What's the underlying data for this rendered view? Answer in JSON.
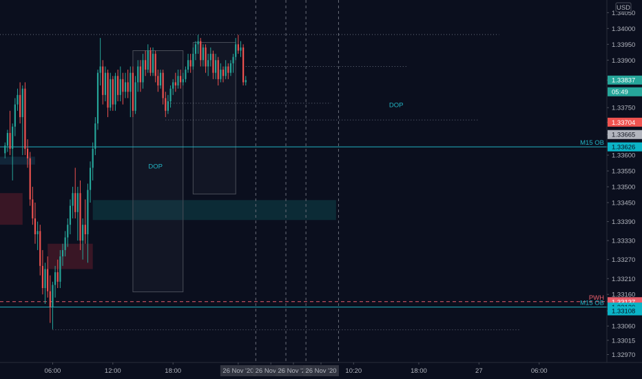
{
  "chart_data": {
    "type": "candlestick",
    "currency": "USD",
    "ylim": [
      1.32945,
      1.3409
    ],
    "xlim": [
      -2,
      240
    ],
    "y_ticks": [
      1.3405,
      1.34,
      1.3395,
      1.339,
      1.33837,
      1.3375,
      1.33704,
      1.33665,
      1.33626,
      1.336,
      1.3355,
      1.335,
      1.3345,
      1.3339,
      1.3333,
      1.3327,
      1.3321,
      1.3316,
      1.33137,
      1.3312,
      1.33108,
      1.3306,
      1.33015,
      1.3297
    ],
    "y_tick_labels": [
      "1.34050",
      "1.34000",
      "1.33950",
      "1.33900",
      "1.33837",
      "1.33750",
      "1.33704",
      "1.33665",
      "1.33626",
      "1.33600",
      "1.33550",
      "1.33500",
      "1.33450",
      "1.33390",
      "1.33330",
      "1.33270",
      "1.33210",
      "1.33160",
      "1.33137",
      "1.33120",
      "1.33108",
      "1.33060",
      "1.33015",
      "1.32970"
    ],
    "x_ticks": [
      {
        "x": 19,
        "label": "06:00"
      },
      {
        "x": 43,
        "label": "12:00"
      },
      {
        "x": 67,
        "label": "18:00"
      },
      {
        "x": 93,
        "label": "26 Nov '20"
      },
      {
        "x": 106,
        "label": "26 Nov '20"
      },
      {
        "x": 115,
        "label": "26 Nov '20"
      },
      {
        "x": 126,
        "label": "26 Nov '20"
      },
      {
        "x": 139,
        "label": "10:20"
      },
      {
        "x": 165,
        "label": "18:00"
      },
      {
        "x": 189,
        "label": "27"
      },
      {
        "x": 213,
        "label": "06:00"
      }
    ],
    "price_badges": [
      {
        "label": "1.33837",
        "value": 1.33837,
        "bg": "#26a69a",
        "fg": "#ffffff"
      },
      {
        "label": "05:49",
        "value": 1.338,
        "bg": "#26a69a",
        "fg": "#ffffff"
      },
      {
        "label": "1.33704",
        "value": 1.33704,
        "bg": "#f05350",
        "fg": "#ffffff"
      },
      {
        "label": "1.33665",
        "value": 1.33665,
        "bg": "#b2b5be",
        "fg": "#131722"
      },
      {
        "label": "1.33626",
        "value": 1.33626,
        "bg": "#0bb4c7",
        "fg": "#0b0f1e"
      },
      {
        "label": "1.33137",
        "value": 1.33137,
        "bg": "#eb5e6b",
        "fg": "#ffffff"
      },
      {
        "label": "1.33120",
        "value": 1.3312,
        "bg": "#0bb4c7",
        "fg": "#0b0f1e"
      },
      {
        "label": "1.33108",
        "value": 1.33108,
        "bg": "#0bb4c7",
        "fg": "#0b0f1e"
      }
    ],
    "levels": [
      {
        "name": "M15 OB",
        "value": 1.33626,
        "style": "solid",
        "color": "#22b3c3"
      },
      {
        "name": "PWH",
        "value": 1.33137,
        "style": "dashed",
        "color": "#eb5e6b"
      },
      {
        "name": "M15 OB",
        "value": 1.3312,
        "style": "solid",
        "color": "#22b3c3"
      }
    ],
    "annotations": [
      {
        "text": "DOP",
        "x": 156,
        "y": 1.33752
      },
      {
        "text": "DOP",
        "x": 60,
        "y": 1.33558
      }
    ],
    "dotted_lines": [
      {
        "y": 1.33981,
        "x0": -2,
        "x1": 197
      },
      {
        "y": 1.3388,
        "x0": 96,
        "x1": 160
      },
      {
        "y": 1.33764,
        "x0": 64,
        "x1": 130
      },
      {
        "y": 1.33711,
        "x0": 64,
        "x1": 189
      },
      {
        "y": 1.33048,
        "x0": 19,
        "x1": 205
      }
    ],
    "vertical_dashed_x": [
      100,
      112,
      120,
      133
    ],
    "zones": [
      {
        "x0": -2,
        "x1": 7,
        "y0": 1.3338,
        "y1": 1.3348,
        "fill": "#4a1a28",
        "opacity": 0.75
      },
      {
        "x0": 17,
        "x1": 35,
        "y0": 1.3324,
        "y1": 1.3332,
        "fill": "#4a1a28",
        "opacity": 0.75
      },
      {
        "x0": 35,
        "x1": 132,
        "y0": 1.33395,
        "y1": 1.33458,
        "fill": "#0e3a44",
        "opacity": 0.65
      },
      {
        "x0": -2,
        "x1": 12,
        "y0": 1.3357,
        "y1": 1.33595,
        "fill": "#183c52",
        "opacity": 0.5
      }
    ],
    "gray_boxes": [
      {
        "x0": 51,
        "x1": 71,
        "y0": 1.33168,
        "y1": 1.3393
      },
      {
        "x0": 75,
        "x1": 92,
        "y0": 1.33477,
        "y1": 1.33956
      }
    ],
    "candles": [
      {
        "x": 0,
        "o": 1.33606,
        "h": 1.3364,
        "l": 1.3359,
        "c": 1.3363
      },
      {
        "x": 1,
        "o": 1.3363,
        "h": 1.3368,
        "l": 1.3361,
        "c": 1.3367
      },
      {
        "x": 2,
        "o": 1.3367,
        "h": 1.3374,
        "l": 1.336,
        "c": 1.3362
      },
      {
        "x": 3,
        "o": 1.3362,
        "h": 1.337,
        "l": 1.3352,
        "c": 1.3369
      },
      {
        "x": 4,
        "o": 1.3369,
        "h": 1.3378,
        "l": 1.3366,
        "c": 1.3376
      },
      {
        "x": 5,
        "o": 1.3376,
        "h": 1.3381,
        "l": 1.3374,
        "c": 1.3379
      },
      {
        "x": 6,
        "o": 1.3379,
        "h": 1.3383,
        "l": 1.337,
        "c": 1.3372
      },
      {
        "x": 7,
        "o": 1.3372,
        "h": 1.3382,
        "l": 1.336,
        "c": 1.3381
      },
      {
        "x": 8,
        "o": 1.3381,
        "h": 1.3383,
        "l": 1.336,
        "c": 1.3362
      },
      {
        "x": 9,
        "o": 1.3362,
        "h": 1.3365,
        "l": 1.3356,
        "c": 1.3359
      },
      {
        "x": 10,
        "o": 1.3359,
        "h": 1.3361,
        "l": 1.3344,
        "c": 1.3346
      },
      {
        "x": 11,
        "o": 1.3346,
        "h": 1.335,
        "l": 1.3338,
        "c": 1.334
      },
      {
        "x": 12,
        "o": 1.334,
        "h": 1.3345,
        "l": 1.3332,
        "c": 1.3335
      },
      {
        "x": 13,
        "o": 1.3335,
        "h": 1.3339,
        "l": 1.333,
        "c": 1.3336
      },
      {
        "x": 14,
        "o": 1.3336,
        "h": 1.3338,
        "l": 1.3322,
        "c": 1.3325
      },
      {
        "x": 15,
        "o": 1.3325,
        "h": 1.333,
        "l": 1.3316,
        "c": 1.3318
      },
      {
        "x": 16,
        "o": 1.3318,
        "h": 1.3326,
        "l": 1.3313,
        "c": 1.3324
      },
      {
        "x": 17,
        "o": 1.3324,
        "h": 1.3328,
        "l": 1.3315,
        "c": 1.3317
      },
      {
        "x": 18,
        "o": 1.3317,
        "h": 1.3322,
        "l": 1.3307,
        "c": 1.3312
      },
      {
        "x": 19,
        "o": 1.3312,
        "h": 1.332,
        "l": 1.3305,
        "c": 1.3319
      },
      {
        "x": 20,
        "o": 1.3319,
        "h": 1.3325,
        "l": 1.3315,
        "c": 1.3323
      },
      {
        "x": 21,
        "o": 1.3323,
        "h": 1.3327,
        "l": 1.3318,
        "c": 1.332
      },
      {
        "x": 22,
        "o": 1.332,
        "h": 1.333,
        "l": 1.3318,
        "c": 1.3328
      },
      {
        "x": 23,
        "o": 1.3328,
        "h": 1.3332,
        "l": 1.3325,
        "c": 1.333
      },
      {
        "x": 24,
        "o": 1.333,
        "h": 1.3336,
        "l": 1.3328,
        "c": 1.3334
      },
      {
        "x": 25,
        "o": 1.3334,
        "h": 1.334,
        "l": 1.3331,
        "c": 1.3338
      },
      {
        "x": 26,
        "o": 1.3338,
        "h": 1.3346,
        "l": 1.3335,
        "c": 1.3344
      },
      {
        "x": 27,
        "o": 1.3344,
        "h": 1.335,
        "l": 1.334,
        "c": 1.3348
      },
      {
        "x": 28,
        "o": 1.3348,
        "h": 1.3356,
        "l": 1.334,
        "c": 1.3342
      },
      {
        "x": 29,
        "o": 1.3342,
        "h": 1.335,
        "l": 1.3333,
        "c": 1.3348
      },
      {
        "x": 30,
        "o": 1.3348,
        "h": 1.3352,
        "l": 1.333,
        "c": 1.3333
      },
      {
        "x": 31,
        "o": 1.3333,
        "h": 1.334,
        "l": 1.3327,
        "c": 1.3338
      },
      {
        "x": 32,
        "o": 1.3338,
        "h": 1.3346,
        "l": 1.3332,
        "c": 1.3335
      },
      {
        "x": 33,
        "o": 1.3335,
        "h": 1.3351,
        "l": 1.3326,
        "c": 1.3349
      },
      {
        "x": 34,
        "o": 1.3349,
        "h": 1.3358,
        "l": 1.3345,
        "c": 1.3356
      },
      {
        "x": 35,
        "o": 1.3356,
        "h": 1.3364,
        "l": 1.3352,
        "c": 1.3362
      },
      {
        "x": 36,
        "o": 1.3362,
        "h": 1.3372,
        "l": 1.336,
        "c": 1.337
      },
      {
        "x": 37,
        "o": 1.337,
        "h": 1.3387,
        "l": 1.3368,
        "c": 1.3386
      },
      {
        "x": 38,
        "o": 1.3386,
        "h": 1.3397,
        "l": 1.3382,
        "c": 1.3388
      },
      {
        "x": 39,
        "o": 1.3388,
        "h": 1.339,
        "l": 1.3376,
        "c": 1.3379
      },
      {
        "x": 40,
        "o": 1.3379,
        "h": 1.3388,
        "l": 1.3377,
        "c": 1.3386
      },
      {
        "x": 41,
        "o": 1.3386,
        "h": 1.3387,
        "l": 1.3372,
        "c": 1.3375
      },
      {
        "x": 42,
        "o": 1.3375,
        "h": 1.3386,
        "l": 1.3374,
        "c": 1.3384
      },
      {
        "x": 43,
        "o": 1.3384,
        "h": 1.3385,
        "l": 1.3374,
        "c": 1.3376
      },
      {
        "x": 44,
        "o": 1.3376,
        "h": 1.3386,
        "l": 1.3374,
        "c": 1.3385
      },
      {
        "x": 45,
        "o": 1.3385,
        "h": 1.3387,
        "l": 1.3377,
        "c": 1.3379
      },
      {
        "x": 46,
        "o": 1.3379,
        "h": 1.3388,
        "l": 1.3377,
        "c": 1.3384
      },
      {
        "x": 47,
        "o": 1.3384,
        "h": 1.3386,
        "l": 1.3376,
        "c": 1.338
      },
      {
        "x": 48,
        "o": 1.338,
        "h": 1.3386,
        "l": 1.3378,
        "c": 1.3383
      },
      {
        "x": 49,
        "o": 1.3383,
        "h": 1.3387,
        "l": 1.3378,
        "c": 1.338
      },
      {
        "x": 50,
        "o": 1.338,
        "h": 1.3388,
        "l": 1.3372,
        "c": 1.3386
      },
      {
        "x": 51,
        "o": 1.3386,
        "h": 1.3388,
        "l": 1.3372,
        "c": 1.3374
      },
      {
        "x": 52,
        "o": 1.3374,
        "h": 1.3385,
        "l": 1.3373,
        "c": 1.3383
      },
      {
        "x": 53,
        "o": 1.3383,
        "h": 1.339,
        "l": 1.338,
        "c": 1.3388
      },
      {
        "x": 54,
        "o": 1.3388,
        "h": 1.339,
        "l": 1.338,
        "c": 1.3383
      },
      {
        "x": 55,
        "o": 1.3383,
        "h": 1.3392,
        "l": 1.3381,
        "c": 1.339
      },
      {
        "x": 56,
        "o": 1.339,
        "h": 1.3393,
        "l": 1.3385,
        "c": 1.3387
      },
      {
        "x": 57,
        "o": 1.3387,
        "h": 1.3395,
        "l": 1.3386,
        "c": 1.3393
      },
      {
        "x": 58,
        "o": 1.3393,
        "h": 1.3394,
        "l": 1.3385,
        "c": 1.3386
      },
      {
        "x": 59,
        "o": 1.3386,
        "h": 1.3394,
        "l": 1.3385,
        "c": 1.3392
      },
      {
        "x": 60,
        "o": 1.3392,
        "h": 1.3393,
        "l": 1.3383,
        "c": 1.3385
      },
      {
        "x": 61,
        "o": 1.3385,
        "h": 1.3387,
        "l": 1.338,
        "c": 1.3382
      },
      {
        "x": 62,
        "o": 1.3382,
        "h": 1.3387,
        "l": 1.3381,
        "c": 1.3386
      },
      {
        "x": 63,
        "o": 1.3386,
        "h": 1.3387,
        "l": 1.3376,
        "c": 1.3378
      },
      {
        "x": 64,
        "o": 1.3378,
        "h": 1.338,
        "l": 1.3372,
        "c": 1.3374
      },
      {
        "x": 65,
        "o": 1.3374,
        "h": 1.3379,
        "l": 1.3373,
        "c": 1.3377
      },
      {
        "x": 66,
        "o": 1.3377,
        "h": 1.3382,
        "l": 1.3375,
        "c": 1.3381
      },
      {
        "x": 67,
        "o": 1.3381,
        "h": 1.3384,
        "l": 1.3379,
        "c": 1.3383
      },
      {
        "x": 68,
        "o": 1.3383,
        "h": 1.3386,
        "l": 1.338,
        "c": 1.3382
      },
      {
        "x": 69,
        "o": 1.3382,
        "h": 1.3387,
        "l": 1.3381,
        "c": 1.3385
      },
      {
        "x": 70,
        "o": 1.3385,
        "h": 1.3387,
        "l": 1.3381,
        "c": 1.3383
      },
      {
        "x": 71,
        "o": 1.3383,
        "h": 1.3386,
        "l": 1.3382,
        "c": 1.3384
      },
      {
        "x": 72,
        "o": 1.3384,
        "h": 1.3388,
        "l": 1.3383,
        "c": 1.3387
      },
      {
        "x": 73,
        "o": 1.3387,
        "h": 1.3392,
        "l": 1.3386,
        "c": 1.339
      },
      {
        "x": 74,
        "o": 1.339,
        "h": 1.3392,
        "l": 1.3386,
        "c": 1.3388
      },
      {
        "x": 75,
        "o": 1.3388,
        "h": 1.3394,
        "l": 1.3387,
        "c": 1.3392
      },
      {
        "x": 76,
        "o": 1.3392,
        "h": 1.3396,
        "l": 1.339,
        "c": 1.3395
      },
      {
        "x": 77,
        "o": 1.3395,
        "h": 1.3398,
        "l": 1.3392,
        "c": 1.3396
      },
      {
        "x": 78,
        "o": 1.3396,
        "h": 1.3397,
        "l": 1.3388,
        "c": 1.339
      },
      {
        "x": 79,
        "o": 1.339,
        "h": 1.3395,
        "l": 1.3388,
        "c": 1.3394
      },
      {
        "x": 80,
        "o": 1.3394,
        "h": 1.3395,
        "l": 1.3386,
        "c": 1.3388
      },
      {
        "x": 81,
        "o": 1.3388,
        "h": 1.3392,
        "l": 1.3385,
        "c": 1.339
      },
      {
        "x": 82,
        "o": 1.339,
        "h": 1.3394,
        "l": 1.3388,
        "c": 1.3392
      },
      {
        "x": 83,
        "o": 1.3392,
        "h": 1.3393,
        "l": 1.3384,
        "c": 1.3386
      },
      {
        "x": 84,
        "o": 1.3386,
        "h": 1.3392,
        "l": 1.3384,
        "c": 1.339
      },
      {
        "x": 85,
        "o": 1.339,
        "h": 1.3391,
        "l": 1.3382,
        "c": 1.3384
      },
      {
        "x": 86,
        "o": 1.3384,
        "h": 1.3389,
        "l": 1.3383,
        "c": 1.3387
      },
      {
        "x": 87,
        "o": 1.3387,
        "h": 1.3388,
        "l": 1.3383,
        "c": 1.3385
      },
      {
        "x": 88,
        "o": 1.3385,
        "h": 1.339,
        "l": 1.3384,
        "c": 1.3388
      },
      {
        "x": 89,
        "o": 1.3388,
        "h": 1.3389,
        "l": 1.3384,
        "c": 1.3386
      },
      {
        "x": 90,
        "o": 1.3386,
        "h": 1.339,
        "l": 1.3385,
        "c": 1.3389
      },
      {
        "x": 91,
        "o": 1.3389,
        "h": 1.3392,
        "l": 1.3386,
        "c": 1.3391
      },
      {
        "x": 92,
        "o": 1.3391,
        "h": 1.3397,
        "l": 1.339,
        "c": 1.3395
      },
      {
        "x": 93,
        "o": 1.3395,
        "h": 1.3398,
        "l": 1.3392,
        "c": 1.3393
      },
      {
        "x": 94,
        "o": 1.3393,
        "h": 1.3396,
        "l": 1.3391,
        "c": 1.3394
      },
      {
        "x": 95,
        "o": 1.3394,
        "h": 1.3395,
        "l": 1.3382,
        "c": 1.3383
      },
      {
        "x": 96,
        "o": 1.3383,
        "h": 1.3385,
        "l": 1.3382,
        "c": 1.33837
      }
    ]
  }
}
